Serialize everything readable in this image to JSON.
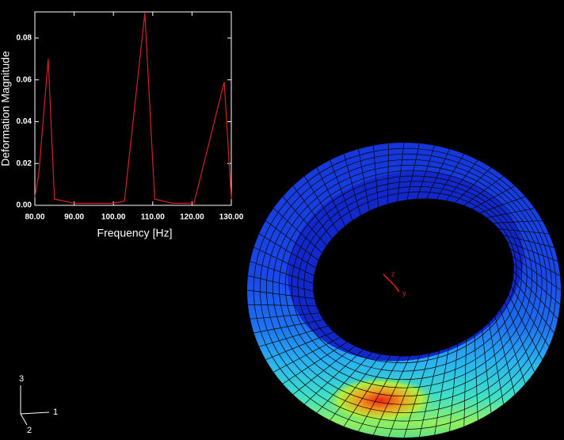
{
  "chart_data": {
    "type": "line",
    "xlabel": "Frequency [Hz]",
    "ylabel": "Deformation Magnitude",
    "x": [
      80,
      81,
      83.4,
      85,
      90,
      95,
      100,
      102.8,
      108,
      110.5,
      115,
      120.5,
      128.2,
      130
    ],
    "values": [
      0.004,
      0.015,
      0.07,
      0.003,
      0.001,
      0.001,
      0.001,
      0.002,
      0.092,
      0.003,
      0.001,
      0.001,
      0.059,
      0.003
    ],
    "color": "#d82020",
    "xlim": [
      80,
      130
    ],
    "xticks": [
      {
        "value": 80,
        "label": "80.00"
      },
      {
        "value": 90,
        "label": "90.00"
      },
      {
        "value": 100,
        "label": "100.00"
      },
      {
        "value": 110,
        "label": "110.00"
      },
      {
        "value": 120,
        "label": "120.00"
      },
      {
        "value": 130,
        "label": "130.00"
      }
    ],
    "ylim": [
      0,
      0.0925
    ],
    "yticks": [
      {
        "value": 0,
        "label": "0.00"
      },
      {
        "value": 0.02,
        "label": "0.02"
      },
      {
        "value": 0.04,
        "label": "0.04"
      },
      {
        "value": 0.06,
        "label": "0.06"
      },
      {
        "value": 0.08,
        "label": "0.08"
      }
    ]
  },
  "triad": {
    "axis_3": "3",
    "axis_1": "1",
    "axis_2": "2"
  },
  "center_triad": {
    "first": "z",
    "second": "y"
  }
}
